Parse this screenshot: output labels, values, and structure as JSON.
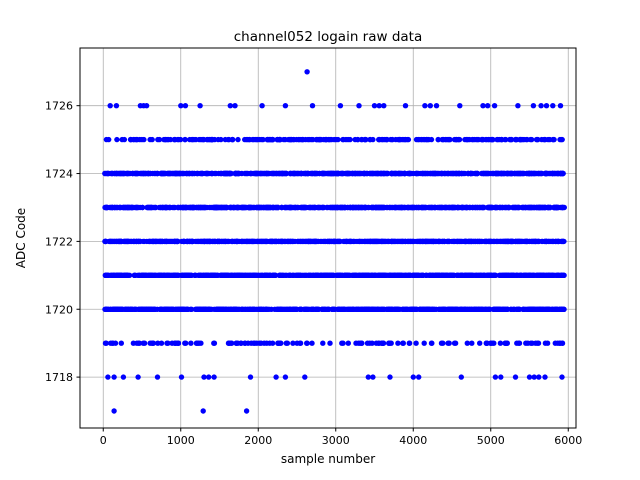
{
  "figure": {
    "background": "#ffffff"
  },
  "chart_data": {
    "type": "scatter",
    "title": "channel052 logain raw data",
    "xlabel": "sample number",
    "ylabel": "ADC Code",
    "xlim": [
      -300,
      6100
    ],
    "ylim": [
      1716.5,
      1727.7
    ],
    "xticks": [
      0,
      1000,
      2000,
      3000,
      4000,
      5000,
      6000
    ],
    "yticks": [
      1718,
      1720,
      1722,
      1724,
      1726
    ],
    "grid": true,
    "grid_color": "#b0b0b0",
    "marker_color": "#0000ff",
    "marker_radius": 2.7,
    "x_range": [
      20,
      5950
    ],
    "bands": [
      {
        "y": 1727,
        "x": [
          2630
        ]
      },
      {
        "y": 1726,
        "x": [
          90,
          170,
          480,
          520,
          560,
          1000,
          1060,
          1250,
          1640,
          1700,
          2050,
          2350,
          2700,
          3060,
          3300,
          3500,
          3560,
          3620,
          3900,
          4150,
          4220,
          4300,
          4600,
          4900,
          4960,
          5050,
          5350,
          5550,
          5650,
          5720,
          5800,
          5900
        ]
      },
      {
        "y": 1725,
        "count": 280
      },
      {
        "y": 1724,
        "count": 700
      },
      {
        "y": 1723,
        "count": 760
      },
      {
        "y": 1722,
        "count": 850
      },
      {
        "y": 1721,
        "count": 780
      },
      {
        "y": 1720,
        "count": 700
      },
      {
        "y": 1719,
        "count": 150
      },
      {
        "y": 1718,
        "x": [
          60,
          140,
          260,
          450,
          700,
          1010,
          1300,
          1360,
          1430,
          1900,
          2230,
          2350,
          2600,
          3420,
          3480,
          3700,
          4000,
          4070,
          4620,
          5060,
          5130,
          5320,
          5500,
          5560,
          5620,
          5700,
          5920
        ]
      },
      {
        "y": 1717,
        "x": [
          140,
          1290,
          1850
        ]
      }
    ]
  }
}
